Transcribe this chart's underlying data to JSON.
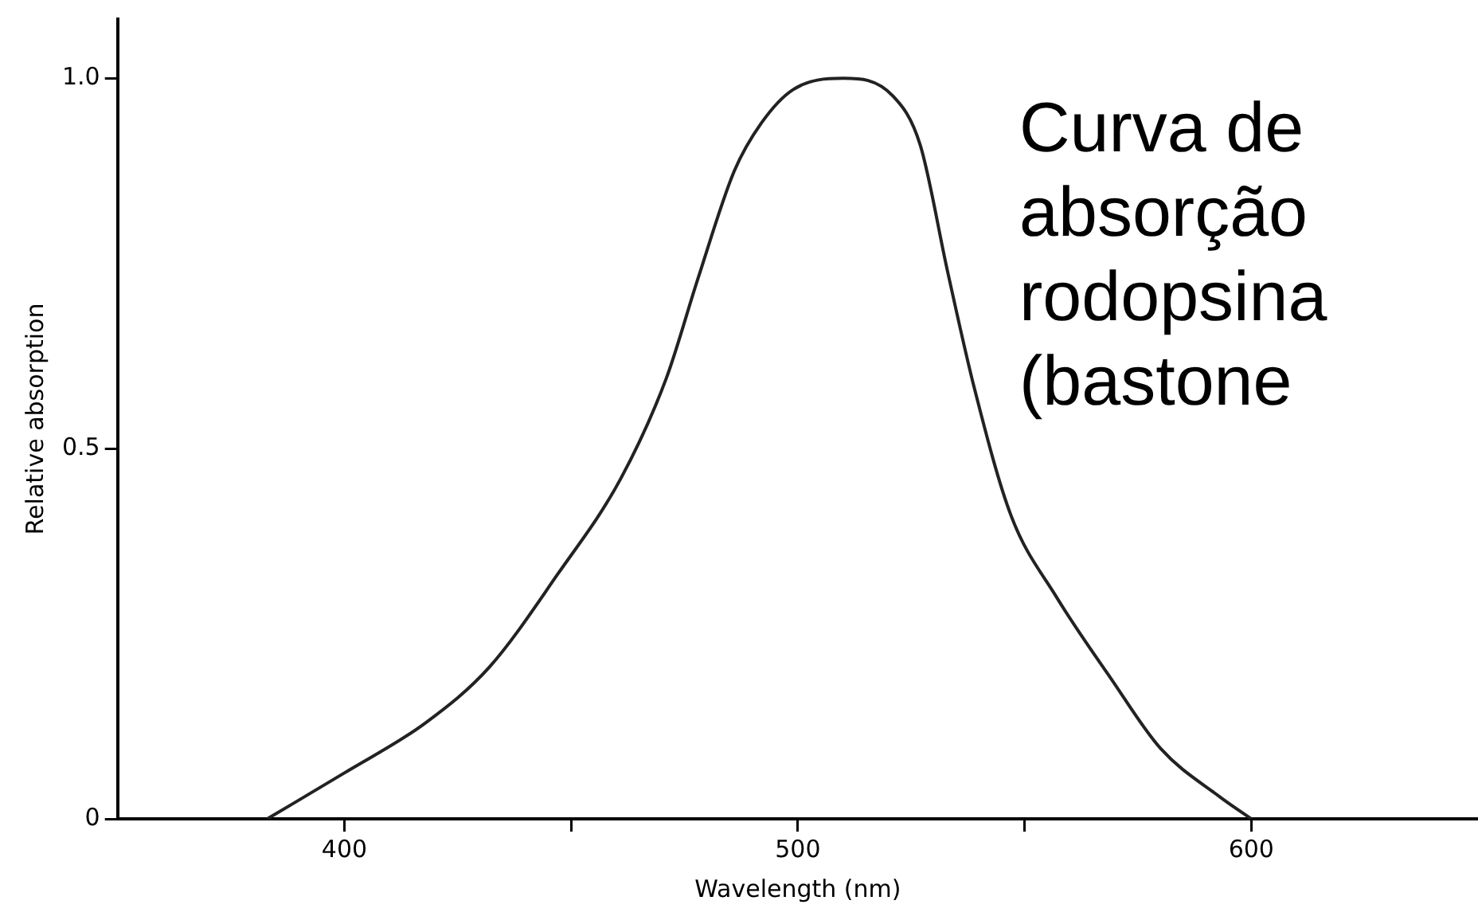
{
  "chart_data": {
    "type": "line",
    "xlabel": "Wavelength (nm)",
    "ylabel": "Relative absorption",
    "annotations": [
      "Curva de absorção rodopsina (bastone"
    ],
    "x": [
      383,
      400,
      418,
      432,
      447,
      461,
      471,
      478,
      486,
      492,
      499,
      510,
      521,
      527,
      533,
      539,
      547,
      557,
      569,
      580,
      593,
      600
    ],
    "series": [
      {
        "color": "#222222",
        "values": [
          0,
          0.062,
          0.13,
          0.205,
          0.33,
          0.46,
          0.595,
          0.73,
          0.875,
          0.94,
          0.985,
          1.0,
          0.976,
          0.91,
          0.74,
          0.58,
          0.41,
          0.3,
          0.19,
          0.095,
          0.03,
          0
        ]
      }
    ],
    "xlim": [
      350,
      650
    ],
    "ylim": [
      0,
      1.08
    ],
    "xticks": [
      400,
      {
        "value": 450,
        "label": null
      },
      500,
      {
        "value": 550,
        "label": null
      },
      600
    ],
    "yticks": [
      {
        "value": 0,
        "label": "0"
      },
      {
        "value": 0.5,
        "label": "0.5"
      },
      {
        "value": 1.0,
        "label": "1.0"
      }
    ],
    "marker": "none",
    "line_style": "solid",
    "legend": false,
    "grid": false
  }
}
